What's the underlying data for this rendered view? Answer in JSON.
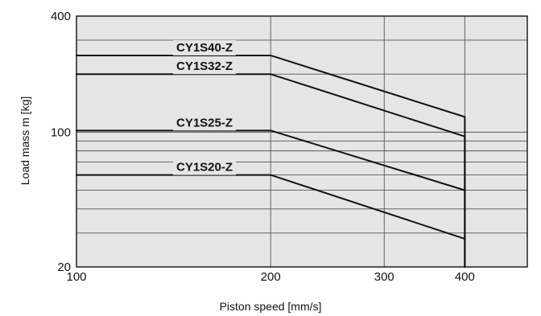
{
  "chart_data": {
    "type": "line",
    "title": "",
    "xlabel": "Piston speed [mm/s]",
    "ylabel": "Load mass  m [kg]",
    "xlim": [
      100,
      500
    ],
    "ylim": [
      20,
      400
    ],
    "x_scale": "log",
    "y_scale": "log",
    "grid": true,
    "x_ticks": [
      {
        "value": 100,
        "label": "100"
      },
      {
        "value": 200,
        "label": "200"
      },
      {
        "value": 300,
        "label": "300"
      },
      {
        "value": 400,
        "label": "400"
      }
    ],
    "y_ticks": [
      {
        "value": 20,
        "label": "20"
      },
      {
        "value": 100,
        "label": "100"
      },
      {
        "value": 400,
        "label": "400"
      }
    ],
    "series": [
      {
        "name": "CY1S40-Z",
        "points": [
          {
            "x": 100,
            "y": 250
          },
          {
            "x": 200,
            "y": 250
          },
          {
            "x": 400,
            "y": 120
          },
          {
            "x": 400,
            "y": 20
          }
        ]
      },
      {
        "name": "CY1S32-Z",
        "points": [
          {
            "x": 100,
            "y": 200
          },
          {
            "x": 200,
            "y": 200
          },
          {
            "x": 400,
            "y": 95
          },
          {
            "x": 400,
            "y": 20
          }
        ]
      },
      {
        "name": "CY1S25-Z",
        "points": [
          {
            "x": 100,
            "y": 102
          },
          {
            "x": 200,
            "y": 102
          },
          {
            "x": 400,
            "y": 50
          }
        ]
      },
      {
        "name": "CY1S20-Z",
        "points": [
          {
            "x": 100,
            "y": 60
          },
          {
            "x": 200,
            "y": 60
          },
          {
            "x": 400,
            "y": 28
          }
        ]
      }
    ]
  }
}
